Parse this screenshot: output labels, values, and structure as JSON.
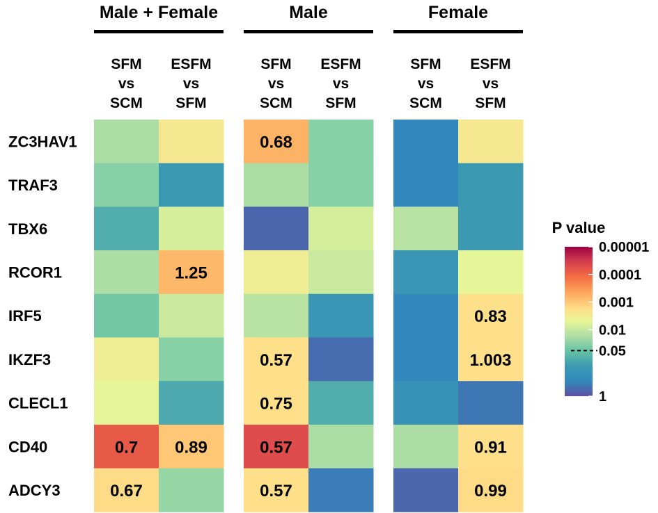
{
  "chart_data": {
    "type": "heatmap",
    "groups": [
      {
        "name": "Male + Female",
        "columns": [
          "SFM vs SCM",
          "ESFM vs SFM"
        ]
      },
      {
        "name": "Male",
        "columns": [
          "SFM vs SCM",
          "ESFM vs SFM"
        ]
      },
      {
        "name": "Female",
        "columns": [
          "SFM vs SCM",
          "ESFM vs SFM"
        ]
      }
    ],
    "column_label_lines": [
      [
        "SFM",
        "vs",
        "SCM"
      ],
      [
        "ESFM",
        "vs",
        "SFM"
      ]
    ],
    "rows": [
      "ZC3HAV1",
      "TRAF3",
      "TBX6",
      "RCOR1",
      "IRF5",
      "IKZF3",
      "CLECL1",
      "CD40",
      "ADCY3"
    ],
    "colorscale": "Spectral (reversed)",
    "color_values_note": "normalized color position per cell, 0 = P value 1 (purple), 1 = P value 0.00001 (dark red)",
    "color_values": [
      [
        0.4,
        0.55,
        0.67,
        0.35,
        0.1,
        0.55
      ],
      [
        0.35,
        0.2,
        0.4,
        0.35,
        0.1,
        0.2
      ],
      [
        0.25,
        0.47,
        0.04,
        0.47,
        0.42,
        0.2
      ],
      [
        0.4,
        0.66,
        0.53,
        0.45,
        0.18,
        0.5
      ],
      [
        0.32,
        0.45,
        0.42,
        0.18,
        0.1,
        0.58
      ],
      [
        0.53,
        0.35,
        0.58,
        0.05,
        0.1,
        0.58
      ],
      [
        0.5,
        0.24,
        0.58,
        0.25,
        0.16,
        0.07
      ],
      [
        0.84,
        0.63,
        0.87,
        0.4,
        0.4,
        0.58
      ],
      [
        0.59,
        0.37,
        0.58,
        0.08,
        0.04,
        0.59
      ]
    ],
    "annotations": [
      [
        "",
        "",
        "0.68",
        "",
        "",
        ""
      ],
      [
        "",
        "",
        "",
        "",
        "",
        ""
      ],
      [
        "",
        "",
        "",
        "",
        "",
        ""
      ],
      [
        "",
        "1.25",
        "",
        "",
        "",
        ""
      ],
      [
        "",
        "",
        "",
        "",
        "",
        "0.83"
      ],
      [
        "",
        "",
        "0.57",
        "",
        "",
        "1.003"
      ],
      [
        "",
        "",
        "0.75",
        "",
        "",
        ""
      ],
      [
        "0.7",
        "0.89",
        "0.57",
        "",
        "",
        "0.91"
      ],
      [
        "0.67",
        "",
        "0.57",
        "",
        "",
        "0.99"
      ]
    ],
    "legend": {
      "title": "P value",
      "ticks": [
        "0.00001",
        "0.0001",
        "0.001",
        "0.01",
        "0.05",
        "1"
      ],
      "tick_positions": [
        1.0,
        0.815,
        0.63,
        0.445,
        0.305,
        0.0
      ],
      "dashed_tick": "0.05"
    }
  }
}
